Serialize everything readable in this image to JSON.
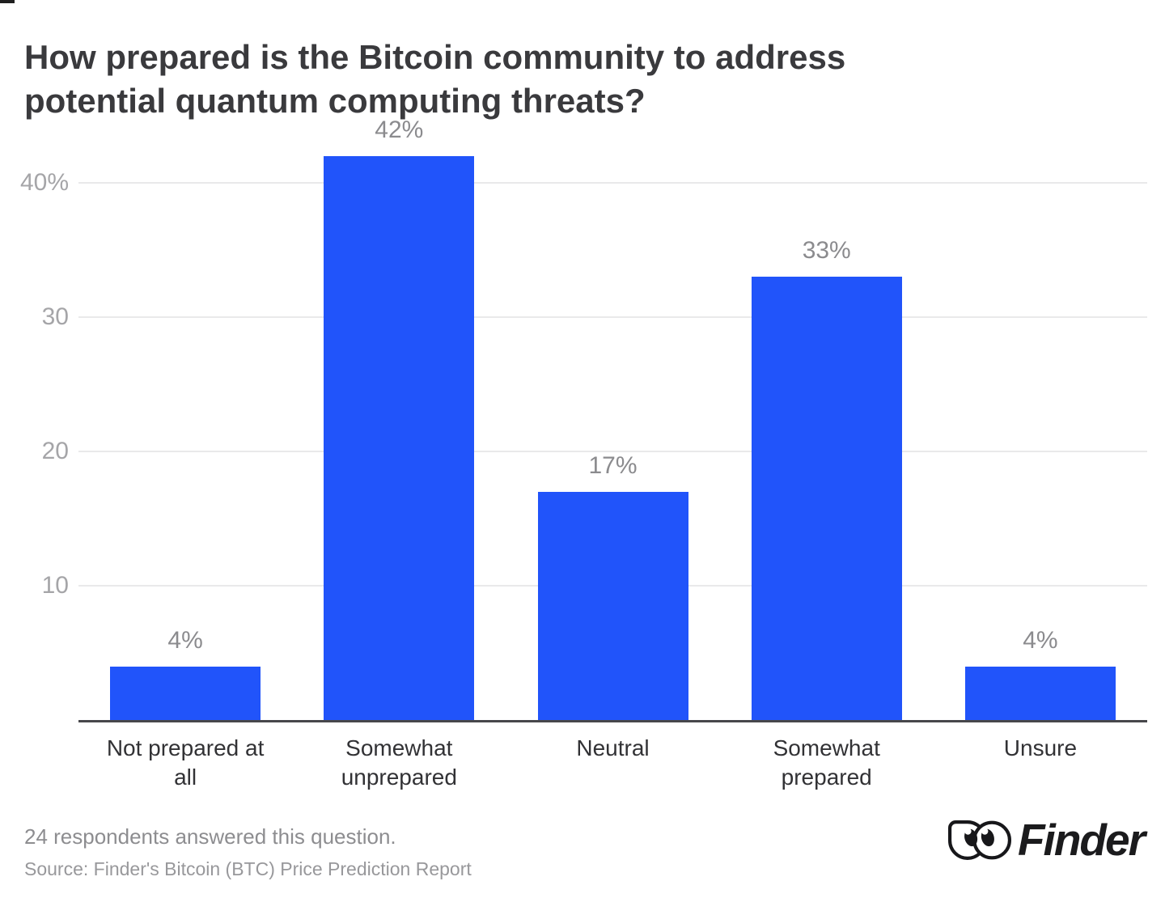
{
  "title": {
    "line1": "How prepared is the Bitcoin community to address",
    "line2": "potential quantum computing threats?"
  },
  "footer": {
    "note": "24 respondents answered this question.",
    "source": "Source: Finder's Bitcoin (BTC) Price Prediction Report"
  },
  "logo": {
    "text": "Finder"
  },
  "colors": {
    "bar": "#2154fa",
    "gridline": "#e9e9ea",
    "axis_line": "#47474b",
    "title_text": "#3a3a3d",
    "tick_text": "#a5a5a8",
    "value_text": "#8b8b8e",
    "category_text": "#323235"
  },
  "chart_data": {
    "type": "bar",
    "title": "How prepared is the Bitcoin community to address potential quantum computing threats?",
    "categories": [
      "Not prepared at all",
      "Somewhat unprepared",
      "Neutral",
      "Somewhat prepared",
      "Unsure"
    ],
    "category_labels": [
      "Not prepared at\nall",
      "Somewhat\nunprepared",
      "Neutral",
      "Somewhat\nprepared",
      "Unsure"
    ],
    "values": [
      4,
      42,
      17,
      33,
      4
    ],
    "value_labels": [
      "4%",
      "42%",
      "17%",
      "33%",
      "4%"
    ],
    "unit": "%",
    "yticks": [
      {
        "value": 10,
        "label": "10"
      },
      {
        "value": 20,
        "label": "20"
      },
      {
        "value": 30,
        "label": "30"
      },
      {
        "value": 40,
        "label": "40%"
      }
    ],
    "ylim": [
      0,
      45
    ],
    "bar_color": "#2154fa",
    "grid": true,
    "legend": false,
    "xlabel": "",
    "ylabel": ""
  }
}
